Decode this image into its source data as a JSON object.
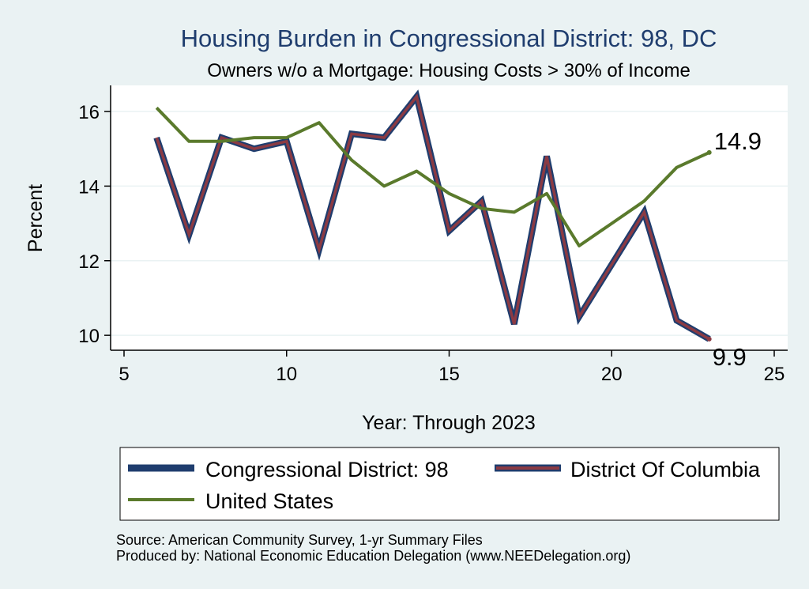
{
  "chart_data": {
    "type": "line",
    "title": "Housing Burden in Congressional District:  98, DC",
    "subtitle": "Owners w/o a Mortgage: Housing Costs > 30% of Income",
    "xlabel": "Year: Through 2023",
    "ylabel": "Percent",
    "xlim": [
      5,
      25
    ],
    "ylim": [
      9.6,
      16.7
    ],
    "xticks": [
      5,
      10,
      15,
      20,
      25
    ],
    "yticks": [
      10,
      12,
      14,
      16
    ],
    "grid": true,
    "legend_position": "bottom",
    "x": [
      6,
      7,
      8,
      9,
      10,
      11,
      12,
      13,
      14,
      15,
      16,
      17,
      18,
      19,
      20,
      21,
      22,
      23
    ],
    "series": [
      {
        "name": "Congressional District:  98",
        "color": "#1f3d6e",
        "values": [
          15.3,
          12.7,
          15.3,
          15.0,
          15.2,
          12.3,
          15.4,
          15.3,
          16.4,
          12.8,
          13.6,
          10.3,
          14.8,
          10.5,
          11.9,
          13.3,
          10.4,
          9.9
        ]
      },
      {
        "name": "District Of Columbia",
        "color": "#8b3a43",
        "values": [
          15.3,
          12.7,
          15.3,
          15.0,
          15.2,
          12.3,
          15.4,
          15.3,
          16.4,
          12.8,
          13.6,
          10.3,
          14.8,
          10.5,
          11.9,
          13.3,
          10.4,
          9.9
        ]
      },
      {
        "name": "United States",
        "color": "#5a7a2c",
        "values": [
          16.1,
          15.2,
          15.2,
          15.3,
          15.3,
          15.7,
          14.7,
          14.0,
          14.4,
          13.8,
          13.4,
          13.3,
          13.8,
          12.4,
          13.0,
          13.6,
          14.5,
          14.9
        ]
      }
    ],
    "end_labels": [
      {
        "series": "United States",
        "text": "14.9"
      },
      {
        "series": "District Of Columbia",
        "text": "9.9"
      }
    ],
    "source_lines": [
      "Source: American Community Survey, 1-yr Summary Files",
      "Produced by: National Economic Education Delegation (www.NEEDelegation.org)"
    ]
  }
}
